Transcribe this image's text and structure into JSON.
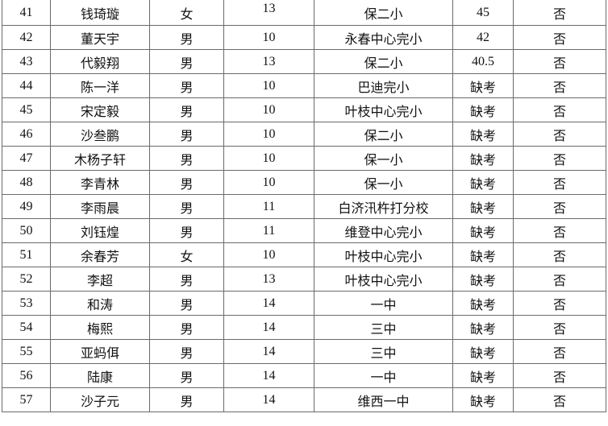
{
  "rows": [
    {
      "no": "41",
      "name": "钱琦璇",
      "gender": "女",
      "age": "13",
      "school": "保二小",
      "score": "45",
      "flag": "否"
    },
    {
      "no": "42",
      "name": "董天宇",
      "gender": "男",
      "age": "10",
      "school": "永春中心完小",
      "score": "42",
      "flag": "否"
    },
    {
      "no": "43",
      "name": "代毅翔",
      "gender": "男",
      "age": "13",
      "school": "保二小",
      "score": "40.5",
      "flag": "否"
    },
    {
      "no": "44",
      "name": "陈一洋",
      "gender": "男",
      "age": "10",
      "school": "巴迪完小",
      "score": "缺考",
      "flag": "否"
    },
    {
      "no": "45",
      "name": "宋定毅",
      "gender": "男",
      "age": "10",
      "school": "叶枝中心完小",
      "score": "缺考",
      "flag": "否"
    },
    {
      "no": "46",
      "name": "沙叁鹏",
      "gender": "男",
      "age": "10",
      "school": "保二小",
      "score": "缺考",
      "flag": "否"
    },
    {
      "no": "47",
      "name": "木杨子轩",
      "gender": "男",
      "age": "10",
      "school": "保一小",
      "score": "缺考",
      "flag": "否"
    },
    {
      "no": "48",
      "name": "李青林",
      "gender": "男",
      "age": "10",
      "school": "保一小",
      "score": "缺考",
      "flag": "否"
    },
    {
      "no": "49",
      "name": "李雨晨",
      "gender": "男",
      "age": "11",
      "school": "白济汛杵打分校",
      "score": "缺考",
      "flag": "否"
    },
    {
      "no": "50",
      "name": "刘钰煌",
      "gender": "男",
      "age": "11",
      "school": "维登中心完小",
      "score": "缺考",
      "flag": "否"
    },
    {
      "no": "51",
      "name": "余春芳",
      "gender": "女",
      "age": "10",
      "school": "叶枝中心完小",
      "score": "缺考",
      "flag": "否"
    },
    {
      "no": "52",
      "name": "李超",
      "gender": "男",
      "age": "13",
      "school": "叶枝中心完小",
      "score": "缺考",
      "flag": "否"
    },
    {
      "no": "53",
      "name": "和涛",
      "gender": "男",
      "age": "14",
      "school": "一中",
      "score": "缺考",
      "flag": "否"
    },
    {
      "no": "54",
      "name": "梅熙",
      "gender": "男",
      "age": "14",
      "school": "三中",
      "score": "缺考",
      "flag": "否"
    },
    {
      "no": "55",
      "name": "亚蚂佴",
      "gender": "男",
      "age": "14",
      "school": "三中",
      "score": "缺考",
      "flag": "否"
    },
    {
      "no": "56",
      "name": "陆康",
      "gender": "男",
      "age": "14",
      "school": "一中",
      "score": "缺考",
      "flag": "否"
    },
    {
      "no": "57",
      "name": "沙子元",
      "gender": "男",
      "age": "14",
      "school": "维西一中",
      "score": "缺考",
      "flag": "否"
    }
  ]
}
